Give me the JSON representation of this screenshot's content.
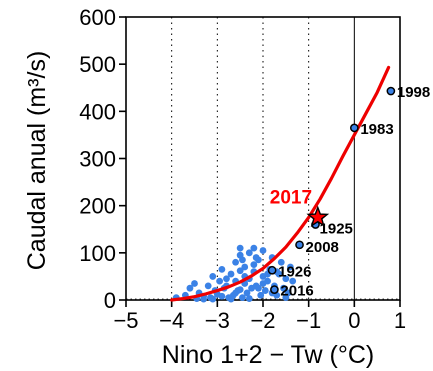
{
  "chart_data": {
    "type": "scatter",
    "xlabel": "Nino 1+2 − Tw (°C)",
    "ylabel": "Caudal anual (m³/s)",
    "xlim": [
      -5,
      1
    ],
    "ylim": [
      0,
      600
    ],
    "x_ticks": [
      -5,
      -4,
      -3,
      -2,
      -1,
      0,
      1
    ],
    "y_ticks": [
      0,
      100,
      200,
      300,
      400,
      500,
      600
    ],
    "x_tick_labels": [
      "−5",
      "−4",
      "−3",
      "−2",
      "−1",
      "0",
      "1"
    ],
    "y_tick_labels": [
      "0",
      "100",
      "200",
      "300",
      "400",
      "500",
      "600"
    ],
    "grid": "dotted vertical lines at x ticks",
    "reference_line_x": 0,
    "highlight": {
      "label": "2017",
      "x": -0.8,
      "y": 175,
      "color": "#ff0000",
      "marker": "star"
    },
    "labeled_points": [
      {
        "label": "1998",
        "x": 0.8,
        "y": 443
      },
      {
        "label": "1983",
        "x": 0.0,
        "y": 365
      },
      {
        "label": "1925",
        "x": -0.85,
        "y": 160
      },
      {
        "label": "2008",
        "x": -1.2,
        "y": 117
      },
      {
        "label": "1926",
        "x": -1.8,
        "y": 63
      },
      {
        "label": "2016",
        "x": -1.75,
        "y": 22
      }
    ],
    "series": [
      {
        "marker_color": "#3b82e6",
        "x": [
          -3.9,
          -3.7,
          -3.6,
          -3.5,
          -3.45,
          -3.4,
          -3.3,
          -3.2,
          -3.15,
          -3.1,
          -3.05,
          -3.0,
          -2.95,
          -2.9,
          -2.85,
          -2.8,
          -2.75,
          -2.7,
          -2.65,
          -2.6,
          -2.6,
          -2.55,
          -2.5,
          -2.5,
          -2.45,
          -2.4,
          -2.4,
          -2.35,
          -2.3,
          -2.3,
          -2.25,
          -2.2,
          -2.2,
          -2.15,
          -2.1,
          -2.05,
          -2.0,
          -2.0,
          -1.95,
          -1.9,
          -1.85,
          -1.8,
          -1.75,
          -1.7,
          -1.65,
          -1.6,
          -1.55,
          -1.5,
          -1.45,
          -1.4,
          -1.35,
          -2.6,
          -2.4,
          -2.1,
          -1.9,
          -2.3,
          -2.7,
          -3.1,
          -2.9,
          -3.3,
          -2.5,
          -2.2,
          -1.7,
          -1.5,
          -2.8,
          -2.0,
          -2.5,
          -1.8,
          -2.45,
          -2.15
        ],
        "y": [
          5,
          10,
          25,
          35,
          3,
          15,
          8,
          30,
          5,
          50,
          20,
          12,
          40,
          8,
          25,
          30,
          5,
          55,
          10,
          80,
          40,
          20,
          95,
          62,
          5,
          35,
          70,
          15,
          45,
          100,
          25,
          110,
          60,
          30,
          85,
          10,
          50,
          105,
          20,
          40,
          65,
          90,
          30,
          10,
          55,
          80,
          25,
          45,
          15,
          70,
          40,
          15,
          50,
          25,
          55,
          3,
          2,
          2,
          65,
          2,
          110,
          75,
          60,
          5,
          45,
          35,
          22,
          15,
          85,
          90
        ]
      },
      {
        "name": "fit",
        "line_color": "#ee0000",
        "x": [
          -4.0,
          -3.75,
          -3.5,
          -3.25,
          -3.0,
          -2.75,
          -2.5,
          -2.25,
          -2.0,
          -1.75,
          -1.5,
          -1.25,
          -1.0,
          -0.75,
          -0.5,
          -0.25,
          0.0,
          0.25,
          0.5,
          0.75
        ],
        "y": [
          0,
          3,
          7,
          13,
          20,
          28,
          38,
          51,
          67,
          88,
          112,
          142,
          175,
          214,
          258,
          305,
          350,
          395,
          440,
          493
        ]
      }
    ]
  }
}
